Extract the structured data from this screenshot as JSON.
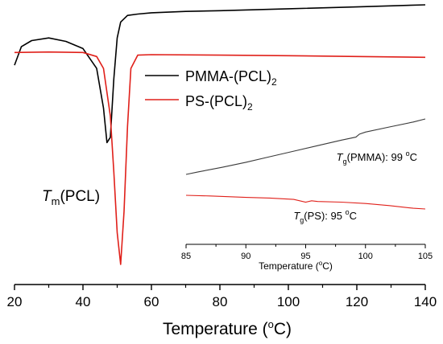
{
  "chart_data": [
    {
      "type": "line",
      "xlabel": "Temperature (",
      "xlabel_unit": "C)",
      "xlabel_degree": "o",
      "xlim": [
        20,
        140
      ],
      "x_ticks": [
        "20",
        "40",
        "60",
        "80",
        "100",
        "120",
        "140"
      ],
      "y_axis_visible": false,
      "grid": false,
      "legend_placement": "upper-center",
      "annotation": {
        "symbol": "T",
        "subscript": "m",
        "suffix": "(PCL)"
      },
      "series": [
        {
          "name_base": "PMMA-(PCL)",
          "name_subscript": "2",
          "color": "#000000",
          "x": [
            20,
            22,
            25,
            30,
            35,
            40,
            44,
            46,
            47,
            48,
            49,
            50,
            51,
            53,
            56,
            60,
            70,
            80,
            100,
            120,
            140
          ],
          "y": [
            -0.48,
            0.22,
            0.45,
            0.55,
            0.42,
            0.15,
            -0.6,
            -2.1,
            -3.4,
            -3.2,
            -1.0,
            0.55,
            1.15,
            1.4,
            1.45,
            1.5,
            1.55,
            1.58,
            1.65,
            1.72,
            1.8
          ]
        },
        {
          "name_base": "PS-(PCL)",
          "name_subscript": "2",
          "color": "#e0201a",
          "x": [
            20,
            30,
            40,
            44,
            46,
            48,
            49,
            50,
            51,
            52,
            53,
            54,
            56,
            60,
            80,
            100,
            120,
            140
          ],
          "y": [
            0,
            0.02,
            0.0,
            -0.15,
            -0.6,
            -2.4,
            -4.5,
            -6.8,
            -8.0,
            -6.0,
            -2.8,
            -0.6,
            -0.1,
            -0.08,
            -0.1,
            -0.12,
            -0.15,
            -0.18
          ]
        }
      ]
    },
    {
      "type": "line",
      "xlabel": "Temperature (",
      "xlabel_unit": "C)",
      "xlabel_degree": "o",
      "xlim": [
        85,
        105
      ],
      "x_ticks": [
        "85",
        "90",
        "95",
        "100",
        "105"
      ],
      "y_axis_visible": false,
      "grid": false,
      "series": [
        {
          "color": "#3a3a3a",
          "x": [
            85,
            86,
            88,
            90,
            92,
            94,
            96,
            98,
            99.2,
            99.5,
            100,
            102,
            104,
            105
          ],
          "y": [
            0.0,
            0.05,
            0.14,
            0.24,
            0.35,
            0.46,
            0.57,
            0.68,
            0.74,
            0.8,
            0.84,
            0.94,
            1.04,
            1.1
          ],
          "label": {
            "symbol": "T",
            "subscript": "g",
            "suffix": "(PMMA): 99 ",
            "degree": "o",
            "unit": "C"
          }
        },
        {
          "color": "#e0201a",
          "x": [
            85,
            87,
            90,
            92,
            94,
            95,
            95.5,
            96,
            98,
            100,
            102,
            104,
            105
          ],
          "y": [
            0.0,
            -0.01,
            -0.03,
            -0.04,
            -0.06,
            -0.1,
            -0.08,
            -0.09,
            -0.1,
            -0.12,
            -0.15,
            -0.19,
            -0.2
          ],
          "label": {
            "symbol": "T",
            "subscript": "g",
            "suffix": "(PS): 95 ",
            "degree": "o",
            "unit": "C"
          }
        }
      ]
    }
  ]
}
